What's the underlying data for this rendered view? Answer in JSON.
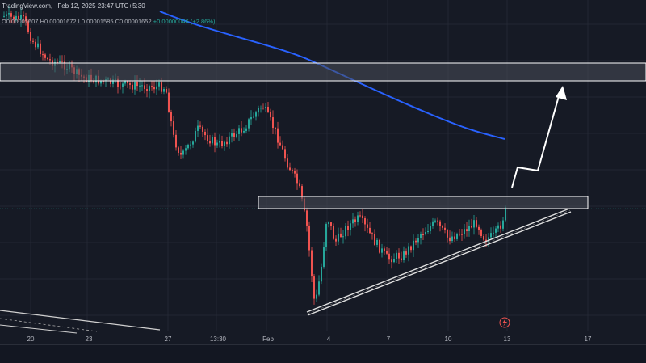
{
  "header": {
    "source": "TradingView.com,",
    "timestamp": "Feb 12, 2025 23:47 UTC+5:30"
  },
  "ohlc": {
    "o_label": "O",
    "o_value": "0.00001607",
    "h_label": "H",
    "h_value": "0.00001672",
    "l_label": "L",
    "l_value": "0.00001585",
    "c_label": "C",
    "c_value": "0.00001652",
    "change": "+0.00000046 (+2.86%)"
  },
  "colors": {
    "background": "#161a25",
    "up": "#26a69a",
    "down": "#ef5350",
    "moving_average": "#2962ff",
    "zone_fill": "#4a4e5a",
    "zone_border": "#ffffff",
    "arrow": "#ffffff"
  },
  "chart_data": {
    "type": "candlestick",
    "title": "",
    "x_ticks": [
      "20",
      "23",
      "27",
      "13:30",
      "Feb",
      "4",
      "7",
      "10",
      "13",
      "17"
    ],
    "price_range": [
      1.25e-05,
      2.05e-05
    ],
    "grid": true,
    "annotations": [
      {
        "kind": "resistance-zone",
        "price_low": 1.86e-05,
        "price_high": 1.91e-05
      },
      {
        "kind": "horizontal-zone",
        "price_low": 1.62e-05,
        "price_high": 1.645e-05
      },
      {
        "kind": "ascending-trendline",
        "from_x": "Feb",
        "to_x": "17"
      },
      {
        "kind": "projected-breakout-arrow",
        "direction": "up"
      }
    ],
    "series": [
      {
        "kind": "moving-average"
      },
      {
        "kind": "candles"
      }
    ]
  },
  "icons": {
    "alert": "lightning-icon"
  }
}
